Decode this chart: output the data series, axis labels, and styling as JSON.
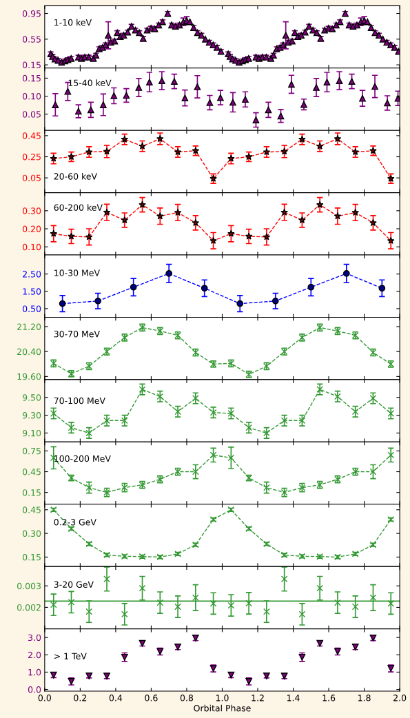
{
  "chart_data": [
    {
      "type": "scatter",
      "marker": "triangle",
      "tick_labels": "y",
      "xlim": [
        0,
        2
      ],
      "xticks": [
        0.0,
        0.2,
        0.4,
        0.6,
        0.8,
        1.0,
        1.2,
        1.4,
        1.6,
        1.8,
        2.0
      ],
      "ylim": [
        0.1,
        1.07
      ],
      "yticks": [
        {
          "value": 0.15,
          "label": "0.15"
        },
        {
          "value": 0.55,
          "label": "0.55"
        },
        {
          "value": 0.95,
          "label": "0.95"
        }
      ],
      "annotations": [
        "1-10 keV"
      ],
      "x": [
        0.034,
        0.044,
        0.058,
        0.076,
        0.095,
        0.114,
        0.131,
        0.149,
        0.19,
        0.207,
        0.226,
        0.248,
        0.274,
        0.289,
        0.307,
        0.326,
        0.343,
        0.358,
        0.372,
        0.394,
        0.409,
        0.426,
        0.445,
        0.467,
        0.489,
        0.511,
        0.533,
        0.555,
        0.577,
        0.599,
        0.62,
        0.642,
        0.664,
        0.693,
        0.715,
        0.737,
        0.759,
        0.781,
        0.8,
        0.818,
        0.839,
        0.861,
        0.883,
        0.905,
        0.927,
        0.949,
        0.971,
        0.993,
        1.034,
        1.044,
        1.058,
        1.076,
        1.095,
        1.114,
        1.131,
        1.149,
        1.19,
        1.207,
        1.226,
        1.248,
        1.274,
        1.289,
        1.307,
        1.326,
        1.343,
        1.358,
        1.372,
        1.394,
        1.409,
        1.426,
        1.445,
        1.467,
        1.489,
        1.511,
        1.533,
        1.555,
        1.577,
        1.599,
        1.62,
        1.642,
        1.664,
        1.693,
        1.715,
        1.737,
        1.759,
        1.781,
        1.8,
        1.818,
        1.839,
        1.861,
        1.883,
        1.905,
        1.927,
        1.949,
        1.971,
        1.993
      ],
      "series": [
        {
          "color": "#800080",
          "values": [
            0.32,
            0.28,
            0.24,
            0.22,
            0.19,
            0.21,
            0.23,
            0.25,
            0.27,
            0.25,
            0.27,
            0.27,
            0.25,
            0.3,
            0.4,
            0.42,
            0.46,
            0.61,
            0.5,
            0.52,
            0.65,
            0.59,
            0.61,
            0.66,
            0.75,
            0.69,
            0.65,
            0.56,
            0.69,
            0.72,
            0.71,
            0.77,
            0.82,
            0.95,
            0.77,
            0.75,
            0.77,
            0.82,
            0.84,
            0.82,
            0.73,
            0.65,
            0.61,
            0.55,
            0.5,
            0.46,
            0.42,
            0.36,
            0.32,
            0.28,
            0.24,
            0.22,
            0.19,
            0.21,
            0.23,
            0.25,
            0.27,
            0.25,
            0.27,
            0.27,
            0.25,
            0.3,
            0.4,
            0.42,
            0.46,
            0.61,
            0.5,
            0.52,
            0.65,
            0.59,
            0.61,
            0.66,
            0.75,
            0.69,
            0.65,
            0.56,
            0.69,
            0.72,
            0.71,
            0.77,
            0.82,
            0.95,
            0.77,
            0.75,
            0.77,
            0.82,
            0.84,
            0.82,
            0.73,
            0.65,
            0.61,
            0.55,
            0.5,
            0.46,
            0.42,
            0.36
          ],
          "errors": [
            0.03,
            0.03,
            0.03,
            0.03,
            0.03,
            0.03,
            0.03,
            0.03,
            0.03,
            0.03,
            0.03,
            0.03,
            0.03,
            0.03,
            0.03,
            0.03,
            0.03,
            0.21,
            0.03,
            0.03,
            0.03,
            0.03,
            0.03,
            0.03,
            0.03,
            0.03,
            0.03,
            0.03,
            0.03,
            0.03,
            0.03,
            0.03,
            0.03,
            0.03,
            0.03,
            0.03,
            0.03,
            0.06,
            0.06,
            null,
            0.03,
            0.03,
            0.03,
            null,
            0.03,
            0.03,
            0.03,
            0.03,
            0.03,
            0.03,
            0.03,
            0.03,
            0.03,
            0.03,
            0.03,
            0.03,
            0.03,
            0.03,
            0.03,
            0.03,
            0.03,
            0.03,
            0.03,
            0.03,
            0.03,
            0.21,
            0.03,
            0.03,
            0.03,
            0.03,
            0.03,
            0.03,
            0.03,
            0.03,
            0.03,
            0.03,
            0.03,
            0.03,
            0.03,
            0.03,
            0.03,
            0.03,
            0.03,
            0.03,
            0.03,
            0.06,
            0.06,
            null,
            0.03,
            0.03,
            0.03,
            null,
            0.03,
            0.03,
            0.03,
            null
          ]
        }
      ]
    },
    {
      "type": "scatter",
      "marker": "triangle",
      "tick_labels": "y",
      "xlim": [
        0,
        2
      ],
      "xticks": [
        0.0,
        0.2,
        0.4,
        0.6,
        0.8,
        1.0,
        1.2,
        1.4,
        1.6,
        1.8,
        2.0
      ],
      "ylim": [
        0.005,
        0.178
      ],
      "yticks": [
        {
          "value": 0.05,
          "label": "0.05"
        },
        {
          "value": 0.1,
          "label": "0.10"
        },
        {
          "value": 0.15,
          "label": "0.15"
        }
      ],
      "annotations": [
        "15-40 keV"
      ],
      "x": [
        0.06,
        0.13,
        0.19,
        0.26,
        0.33,
        0.39,
        0.46,
        0.53,
        0.59,
        0.66,
        0.73,
        0.79,
        0.86,
        0.93,
        0.99,
        1.06,
        1.13,
        1.19,
        1.26,
        1.33,
        1.39,
        1.46,
        1.53,
        1.59,
        1.66,
        1.73,
        1.79,
        1.86,
        1.93,
        1.99
      ],
      "series": [
        {
          "color": "#800080",
          "values": [
            0.076,
            0.113,
            0.058,
            0.062,
            0.076,
            0.101,
            0.102,
            0.124,
            0.139,
            0.143,
            0.141,
            0.095,
            0.126,
            0.082,
            0.096,
            0.083,
            0.091,
            0.034,
            0.062,
            0.045,
            0.133,
            0.077,
            0.124,
            0.139,
            0.143,
            0.141,
            0.094,
            0.127,
            0.081,
            0.094
          ],
          "errors": [
            0.031,
            0.025,
            0.018,
            0.021,
            0.03,
            0.022,
            0.019,
            0.025,
            0.027,
            0.025,
            0.02,
            0.022,
            0.031,
            0.02,
            0.02,
            0.027,
            0.021,
            0.02,
            0.021,
            0.018,
            0.025,
            0.015,
            0.025,
            0.027,
            0.025,
            0.02,
            0.022,
            0.031,
            0.02,
            0.02
          ]
        }
      ]
    },
    {
      "type": "line",
      "line_style": "dashed",
      "marker": "star",
      "tick_labels": "y",
      "xlim": [
        0,
        2
      ],
      "xticks": [
        0.0,
        0.2,
        0.4,
        0.6,
        0.8,
        1.0,
        1.2,
        1.4,
        1.6,
        1.8,
        2.0
      ],
      "ylim": [
        -0.09,
        0.5
      ],
      "yticks": [
        {
          "value": 0.05,
          "label": "0.05"
        },
        {
          "value": 0.25,
          "label": "0.25"
        },
        {
          "value": 0.45,
          "label": "0.45"
        }
      ],
      "annotations": [
        "20-60 keV"
      ],
      "x": [
        0.05,
        0.15,
        0.25,
        0.35,
        0.45,
        0.55,
        0.65,
        0.75,
        0.85,
        0.95,
        1.05,
        1.15,
        1.25,
        1.35,
        1.45,
        1.55,
        1.65,
        1.75,
        1.85,
        1.95
      ],
      "series": [
        {
          "color": "#ff0000",
          "values": [
            0.233,
            0.25,
            0.295,
            0.3,
            0.415,
            0.35,
            0.42,
            0.295,
            0.307,
            0.043,
            0.233,
            0.25,
            0.295,
            0.3,
            0.415,
            0.35,
            0.42,
            0.295,
            0.307,
            0.043
          ],
          "errors": [
            0.05,
            0.045,
            0.05,
            0.058,
            0.05,
            0.05,
            0.055,
            0.05,
            0.045,
            0.045,
            0.05,
            0.045,
            0.05,
            0.058,
            0.05,
            0.05,
            0.055,
            0.05,
            0.045,
            0.045
          ]
        }
      ]
    },
    {
      "type": "line",
      "line_style": "dashed",
      "marker": "star",
      "tick_labels": "y",
      "xlim": [
        0,
        2
      ],
      "xticks": [
        0.0,
        0.2,
        0.4,
        0.6,
        0.8,
        1.0,
        1.2,
        1.4,
        1.6,
        1.8,
        2.0
      ],
      "ylim": [
        0.055,
        0.4
      ],
      "yticks": [
        {
          "value": 0.1,
          "label": "0.10"
        },
        {
          "value": 0.2,
          "label": "0.20"
        },
        {
          "value": 0.3,
          "label": "0.30"
        }
      ],
      "annotations": [
        "60-200 keV"
      ],
      "x": [
        0.05,
        0.15,
        0.25,
        0.35,
        0.45,
        0.55,
        0.65,
        0.75,
        0.85,
        0.95,
        1.05,
        1.15,
        1.25,
        1.35,
        1.45,
        1.55,
        1.65,
        1.75,
        1.85,
        1.95
      ],
      "series": [
        {
          "color": "#ff0000",
          "values": [
            0.173,
            0.158,
            0.155,
            0.291,
            0.248,
            0.333,
            0.27,
            0.29,
            0.233,
            0.134,
            0.173,
            0.158,
            0.155,
            0.291,
            0.248,
            0.333,
            0.27,
            0.29,
            0.233,
            0.134
          ],
          "errors": [
            0.045,
            0.04,
            0.045,
            0.045,
            0.04,
            0.04,
            0.045,
            0.045,
            0.04,
            0.045,
            0.045,
            0.04,
            0.045,
            0.045,
            0.04,
            0.04,
            0.045,
            0.045,
            0.04,
            0.045
          ]
        }
      ]
    },
    {
      "type": "line",
      "line_style": "dashed",
      "marker": "circle",
      "tick_labels": "y",
      "xlim": [
        0,
        2
      ],
      "xticks": [
        0.0,
        0.2,
        0.4,
        0.6,
        0.8,
        1.0,
        1.2,
        1.4,
        1.6,
        1.8,
        2.0
      ],
      "ylim": [
        0,
        3.6
      ],
      "yticks": [
        {
          "value": 0.5,
          "label": "0.50"
        },
        {
          "value": 1.5,
          "label": "1.50"
        },
        {
          "value": 2.5,
          "label": "2.50"
        }
      ],
      "annotations": [
        "10-30 MeV"
      ],
      "x": [
        0.1,
        0.3,
        0.5,
        0.7,
        0.9,
        1.1,
        1.3,
        1.5,
        1.7,
        1.9
      ],
      "series": [
        {
          "color": "#0000ff",
          "values": [
            0.79,
            0.94,
            1.74,
            2.53,
            1.68,
            0.79,
            0.94,
            1.74,
            2.53,
            1.68
          ],
          "errors": [
            0.47,
            0.45,
            0.5,
            0.53,
            0.48,
            0.47,
            0.45,
            0.5,
            0.53,
            0.48
          ]
        }
      ]
    },
    {
      "type": "line",
      "line_style": "dashed",
      "marker": "cross",
      "tick_labels": "y",
      "xlim": [
        0,
        2
      ],
      "xticks": [
        0.0,
        0.2,
        0.4,
        0.6,
        0.8,
        1.0,
        1.2,
        1.4,
        1.6,
        1.8,
        2.0
      ],
      "ylim": [
        19.5,
        21.5
      ],
      "yticks": [
        {
          "value": 19.6,
          "label": "19.60"
        },
        {
          "value": 20.4,
          "label": "20.40"
        },
        {
          "value": 21.2,
          "label": "21.20"
        }
      ],
      "annotations": [
        "30-70 MeV"
      ],
      "x": [
        0.05,
        0.15,
        0.25,
        0.35,
        0.45,
        0.55,
        0.65,
        0.75,
        0.85,
        0.95,
        1.05,
        1.15,
        1.25,
        1.35,
        1.45,
        1.55,
        1.65,
        1.75,
        1.85,
        1.95
      ],
      "series": [
        {
          "color": "#339933",
          "values": [
            20.02,
            19.69,
            19.93,
            20.4,
            20.85,
            21.17,
            21.06,
            20.92,
            20.37,
            20.0,
            20.02,
            19.67,
            19.93,
            20.4,
            20.85,
            21.17,
            21.06,
            20.92,
            20.37,
            20.0
          ],
          "errors": [
            0.11,
            0.1,
            0.11,
            0.11,
            0.11,
            0.11,
            0.11,
            0.11,
            0.11,
            0.1,
            0.11,
            0.1,
            0.11,
            0.11,
            0.11,
            0.11,
            0.11,
            0.11,
            0.11,
            0.1
          ]
        }
      ]
    },
    {
      "type": "line",
      "line_style": "dashed",
      "marker": "cross",
      "tick_labels": "y",
      "xlim": [
        0,
        2
      ],
      "xticks": [
        0.0,
        0.2,
        0.4,
        0.6,
        0.8,
        1.0,
        1.2,
        1.4,
        1.6,
        1.8,
        2.0
      ],
      "ylim": [
        9.0,
        9.7
      ],
      "yticks": [
        {
          "value": 9.1,
          "label": "9.10"
        },
        {
          "value": 9.3,
          "label": "9.30"
        },
        {
          "value": 9.5,
          "label": "9.50"
        }
      ],
      "annotations": [
        "70-100 MeV"
      ],
      "x": [
        0.05,
        0.15,
        0.25,
        0.35,
        0.45,
        0.55,
        0.65,
        0.75,
        0.85,
        0.95,
        1.05,
        1.15,
        1.25,
        1.35,
        1.45,
        1.55,
        1.65,
        1.75,
        1.85,
        1.95
      ],
      "series": [
        {
          "color": "#339933",
          "values": [
            9.32,
            9.16,
            9.1,
            9.24,
            9.24,
            9.59,
            9.51,
            9.34,
            9.49,
            9.33,
            9.32,
            9.16,
            9.1,
            9.24,
            9.24,
            9.59,
            9.51,
            9.34,
            9.49,
            9.32
          ],
          "errors": [
            0.06,
            0.06,
            0.06,
            0.06,
            0.06,
            0.06,
            0.06,
            0.06,
            0.06,
            0.06,
            0.06,
            0.06,
            0.06,
            0.06,
            0.06,
            0.06,
            0.06,
            0.06,
            0.06,
            0.06
          ]
        }
      ]
    },
    {
      "type": "line",
      "line_style": "dashed",
      "marker": "cross",
      "tick_labels": "y",
      "xlim": [
        0,
        2
      ],
      "xticks": [
        0.0,
        0.2,
        0.4,
        0.6,
        0.8,
        1.0,
        1.2,
        1.4,
        1.6,
        1.8,
        2.0
      ],
      "ylim": [
        -0.02,
        0.88
      ],
      "yticks": [
        {
          "value": 0.15,
          "label": "0.15"
        },
        {
          "value": 0.45,
          "label": "0.45"
        },
        {
          "value": 0.75,
          "label": "0.75"
        }
      ],
      "annotations": [
        "100-200 MeV"
      ],
      "x": [
        0.05,
        0.15,
        0.25,
        0.35,
        0.45,
        0.55,
        0.65,
        0.75,
        0.85,
        0.95,
        1.05,
        1.15,
        1.25,
        1.35,
        1.45,
        1.55,
        1.65,
        1.75,
        1.85,
        1.95
      ],
      "series": [
        {
          "color": "#339933",
          "values": [
            0.65,
            0.36,
            0.22,
            0.15,
            0.22,
            0.26,
            0.34,
            0.45,
            0.45,
            0.69,
            0.65,
            0.36,
            0.22,
            0.15,
            0.22,
            0.26,
            0.34,
            0.45,
            0.45,
            0.69
          ],
          "errors": [
            0.16,
            0.04,
            0.08,
            0.06,
            0.06,
            0.05,
            0.05,
            0.05,
            0.1,
            0.1,
            0.155,
            0.04,
            0.08,
            0.06,
            0.06,
            0.05,
            0.05,
            0.05,
            0.1,
            0.1
          ]
        }
      ]
    },
    {
      "type": "line",
      "line_style": "dashed",
      "marker": "cross",
      "tick_labels": "y",
      "xlim": [
        0,
        2
      ],
      "xticks": [
        0.0,
        0.2,
        0.4,
        0.6,
        0.8,
        1.0,
        1.2,
        1.4,
        1.6,
        1.8,
        2.0
      ],
      "ylim": [
        0.09,
        0.485
      ],
      "yticks": [
        {
          "value": 0.15,
          "label": "0.15"
        },
        {
          "value": 0.3,
          "label": "0.30"
        },
        {
          "value": 0.45,
          "label": "0.45"
        }
      ],
      "annotations": [
        "0.2-3 GeV"
      ],
      "x": [
        0.05,
        0.15,
        0.25,
        0.35,
        0.45,
        0.55,
        0.65,
        0.75,
        0.85,
        0.95,
        1.05,
        1.15,
        1.25,
        1.35,
        1.45,
        1.55,
        1.65,
        1.75,
        1.85,
        1.95
      ],
      "series": [
        {
          "color": "#339933",
          "values": [
            0.45,
            0.33,
            0.233,
            0.163,
            0.155,
            0.153,
            0.15,
            0.17,
            0.228,
            0.388,
            0.45,
            0.33,
            0.233,
            0.163,
            0.155,
            0.153,
            0.15,
            0.17,
            0.228,
            0.388
          ],
          "errors": [
            0.01,
            0.01,
            0.01,
            0.01,
            0.01,
            0.01,
            0.01,
            0.01,
            0.01,
            0.01,
            0.01,
            0.01,
            0.01,
            0.01,
            0.01,
            0.01,
            0.01,
            0.01,
            0.01,
            0.01
          ]
        }
      ]
    },
    {
      "type": "scatter",
      "marker": "cross",
      "tick_labels": "y",
      "xlim": [
        0,
        2
      ],
      "xticks": [
        0.0,
        0.2,
        0.4,
        0.6,
        0.8,
        1.0,
        1.2,
        1.4,
        1.6,
        1.8,
        2.0
      ],
      "ylim": [
        0.001,
        0.0039
      ],
      "yticks": [
        {
          "value": 0.002,
          "label": "0.002"
        },
        {
          "value": 0.003,
          "label": "0.003"
        }
      ],
      "annotations": [
        "3-20 GeV"
      ],
      "ref_lines": [
        {
          "axis": "y",
          "value": 0.00229,
          "color": "#339933",
          "line_style": "solid"
        }
      ],
      "x": [
        0.05,
        0.15,
        0.25,
        0.35,
        0.45,
        0.55,
        0.65,
        0.75,
        0.85,
        0.95,
        1.05,
        1.15,
        1.25,
        1.35,
        1.45,
        1.55,
        1.65,
        1.75,
        1.85,
        1.95
      ],
      "series": [
        {
          "color": "#339933",
          "values": [
            0.00212,
            0.00224,
            0.0018,
            0.00332,
            0.00168,
            0.00289,
            0.00222,
            0.00203,
            0.00245,
            0.00218,
            0.00209,
            0.00219,
            0.0018,
            0.00332,
            0.00168,
            0.00289,
            0.00222,
            0.00203,
            0.00245,
            0.00218
          ],
          "errors": [
            0.0005,
            0.0005,
            0.0005,
            0.00056,
            0.0005,
            0.00055,
            0.0005,
            0.0005,
            0.0006,
            0.0005,
            0.0005,
            0.0005,
            0.0005,
            0.00056,
            0.0005,
            0.00055,
            0.0005,
            0.0005,
            0.0006,
            0.0005
          ]
        }
      ]
    },
    {
      "type": "scatter",
      "marker": "triangle_down",
      "xlabel": "Orbital Phase",
      "xlim": [
        0,
        2
      ],
      "xticks": [
        {
          "value": 0.0,
          "label": "0.0"
        },
        {
          "value": 0.2,
          "label": "0.2"
        },
        {
          "value": 0.4,
          "label": "0.4"
        },
        {
          "value": 0.6,
          "label": "0.6"
        },
        {
          "value": 0.8,
          "label": "0.8"
        },
        {
          "value": 1.0,
          "label": "1.0"
        },
        {
          "value": 1.2,
          "label": "1.2"
        },
        {
          "value": 1.4,
          "label": "1.4"
        },
        {
          "value": 1.6,
          "label": "1.6"
        },
        {
          "value": 1.8,
          "label": "1.8"
        },
        {
          "value": 2.0,
          "label": "2.0"
        }
      ],
      "ylim": [
        -0.1,
        3.5
      ],
      "yticks": [
        {
          "value": 0.0,
          "label": "0.0"
        },
        {
          "value": 1.0,
          "label": "1.0"
        },
        {
          "value": 2.0,
          "label": "2.0"
        },
        {
          "value": 3.0,
          "label": "3.0"
        }
      ],
      "annotations": [
        "> 1 TeV"
      ],
      "x": [
        0.05,
        0.15,
        0.25,
        0.35,
        0.45,
        0.55,
        0.65,
        0.75,
        0.85,
        0.95,
        1.05,
        1.15,
        1.25,
        1.35,
        1.45,
        1.55,
        1.65,
        1.75,
        1.85,
        1.95
      ],
      "series": [
        {
          "color": "#800080",
          "values": [
            0.83,
            0.46,
            0.78,
            0.77,
            1.86,
            2.66,
            2.19,
            2.45,
            2.97,
            1.21,
            0.83,
            0.46,
            0.78,
            0.77,
            1.86,
            2.66,
            2.19,
            2.45,
            2.97,
            1.21
          ],
          "errors": [
            0.15,
            0.2,
            0.12,
            0.15,
            0.25,
            0.15,
            0.2,
            0.15,
            0.15,
            0.2,
            0.15,
            0.2,
            0.12,
            0.15,
            0.25,
            0.15,
            0.2,
            0.15,
            0.15,
            0.2
          ]
        }
      ]
    }
  ]
}
